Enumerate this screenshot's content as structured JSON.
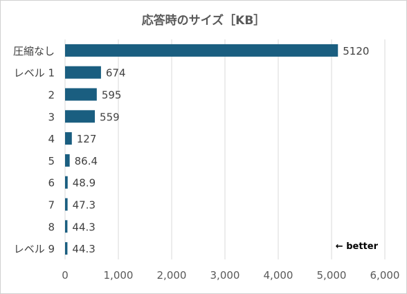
{
  "chart_data": {
    "type": "bar",
    "orientation": "horizontal",
    "title": "応答時のサイズ［KB］",
    "categories": [
      "圧縮なし",
      "レベル 1",
      "2",
      "3",
      "4",
      "5",
      "6",
      "7",
      "8",
      "レベル 9"
    ],
    "values": [
      5120,
      674,
      595,
      559,
      127,
      86.4,
      48.9,
      47.3,
      44.3,
      44.3
    ],
    "value_labels": [
      "5120",
      "674",
      "595",
      "559",
      "127",
      "86.4",
      "48.9",
      "47.3",
      "44.3",
      "44.3"
    ],
    "xlim": [
      0,
      6000
    ],
    "x_ticks": [
      0,
      1000,
      2000,
      3000,
      4000,
      5000,
      6000
    ],
    "x_tick_labels": [
      "0",
      "1,000",
      "2,000",
      "3,000",
      "4,000",
      "5,000",
      "6,000"
    ],
    "grid": true,
    "legend": "none",
    "annotation": "← better",
    "bar_color": "#1a5e80"
  }
}
